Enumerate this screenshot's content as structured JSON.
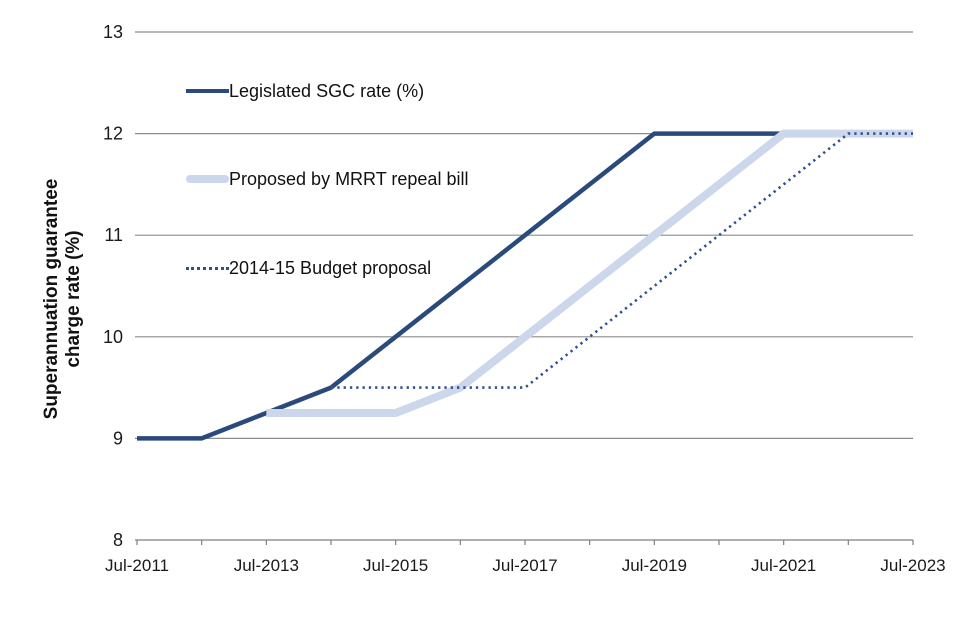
{
  "figure": {
    "y_axis_title_line1": "Superannuation guarantee",
    "y_axis_title_line2": "charge rate (%)"
  },
  "legend": [
    {
      "label": "Legislated SGC rate (%)",
      "swatch": "solid-line",
      "color": "#2b4a7c"
    },
    {
      "label": "Proposed by MRRT repeal bill",
      "swatch": "thick-line",
      "color": "#ccd7ec"
    },
    {
      "label": "2014-15 Budget proposal",
      "swatch": "dotted-line",
      "color": "#30518c"
    }
  ],
  "colors": {
    "grid": "#8c8c8c",
    "axis": "#7f7f7f",
    "text": "#1a1a1a",
    "navy": "#2b4a7c",
    "light_blue": "#ccd7ec",
    "dotted_navy": "#30518c"
  },
  "chart_data": {
    "type": "line",
    "title": "",
    "xlabel": "",
    "ylabel": "Superannuation guarantee charge rate (%)",
    "ylim": [
      8,
      13
    ],
    "y_ticks": [
      8,
      9,
      10,
      11,
      12,
      13
    ],
    "grid": true,
    "legend_position": "inside-top-left",
    "categories": [
      "Jul-2011",
      "Jul-2012",
      "Jul-2013",
      "Jul-2014",
      "Jul-2015",
      "Jul-2016",
      "Jul-2017",
      "Jul-2018",
      "Jul-2019",
      "Jul-2020",
      "Jul-2021",
      "Jul-2022",
      "Jul-2023"
    ],
    "x_labels": [
      {
        "index": 0,
        "text": "Jul-2011"
      },
      {
        "index": 2,
        "text": "Jul-2013"
      },
      {
        "index": 4,
        "text": "Jul-2015"
      },
      {
        "index": 6,
        "text": "Jul-2017"
      },
      {
        "index": 8,
        "text": "Jul-2019"
      },
      {
        "index": 10,
        "text": "Jul-2021"
      },
      {
        "index": 12,
        "text": "Jul-2023"
      }
    ],
    "series": [
      {
        "name": "Legislated SGC rate (%)",
        "color": "#2b4a7c",
        "stroke_width": 4.5,
        "dash": null,
        "values": [
          9,
          9,
          9.25,
          9.5,
          10,
          10.5,
          11,
          11.5,
          12,
          12,
          12,
          null,
          null
        ]
      },
      {
        "name": "Proposed by MRRT repeal bill",
        "color": "#ccd7ec",
        "stroke_width": 8,
        "dash": null,
        "values": [
          null,
          null,
          9.25,
          9.25,
          9.25,
          9.5,
          10,
          10.5,
          11,
          11.5,
          12,
          12,
          12
        ]
      },
      {
        "name": "2014-15 Budget proposal",
        "color": "#30518c",
        "stroke_width": 2.6,
        "dash": "2.3 4",
        "values": [
          null,
          null,
          null,
          9.5,
          9.5,
          9.5,
          9.5,
          10,
          10.5,
          11,
          11.5,
          12,
          12
        ]
      }
    ]
  }
}
